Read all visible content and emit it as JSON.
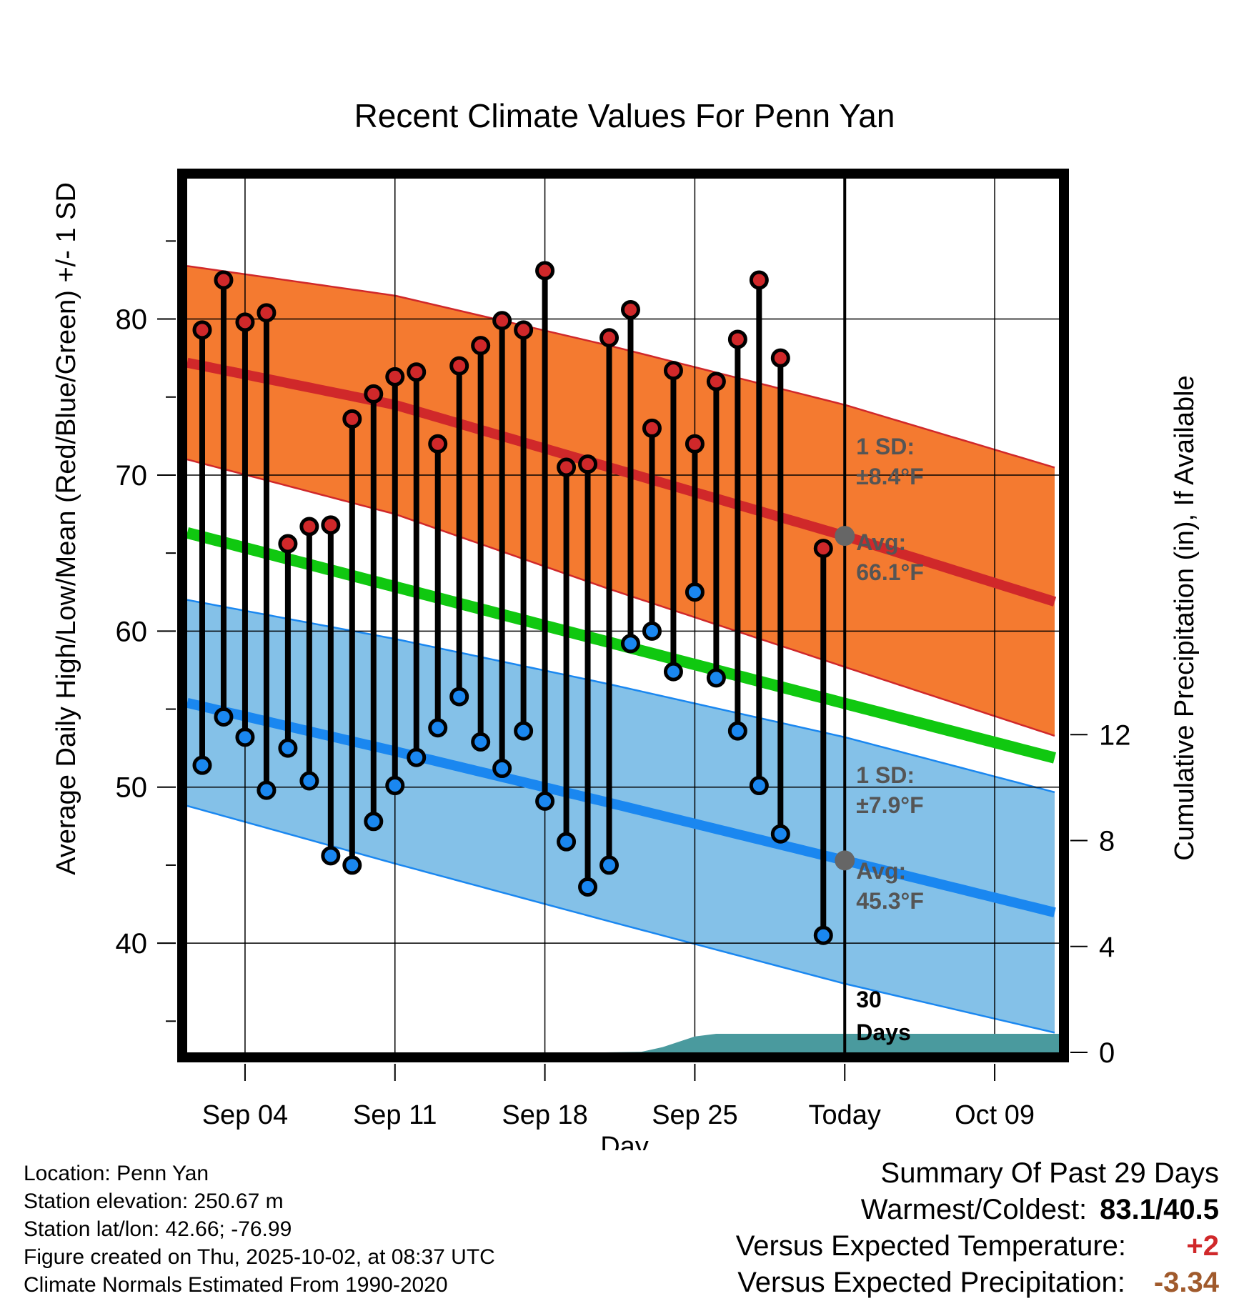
{
  "chart_data": {
    "type": "line",
    "title": "Recent Climate Values For Penn Yan",
    "xlabel": "Day",
    "ylabel": "Average Daily High/Low/Mean (Red/Blue/Green) +/- 1 SD",
    "y2label": "Cumulative Precipitation (in), If Available",
    "x_tick_labels": [
      "Sep 04",
      "Sep 11",
      "Sep 18",
      "Sep 25",
      "Today",
      "Oct 09"
    ],
    "x_tick_days": [
      3,
      10,
      17,
      24,
      31,
      38
    ],
    "x_range_days": [
      0.3,
      41
    ],
    "today_day": 31,
    "ylim": [
      33,
      89
    ],
    "y_ticks": [
      40,
      50,
      60,
      70,
      80
    ],
    "y2lim": [
      0,
      33
    ],
    "y2_ticks": [
      0,
      4,
      8,
      12
    ],
    "daily": {
      "days": [
        1,
        2,
        3,
        4,
        5,
        6,
        7,
        8,
        9,
        10,
        11,
        12,
        13,
        14,
        15,
        16,
        17,
        18,
        19,
        20,
        21,
        22,
        23,
        24,
        25,
        26,
        27,
        28,
        29,
        30
      ],
      "highs": [
        79.3,
        82.5,
        79.8,
        80.4,
        65.6,
        66.7,
        66.8,
        73.6,
        75.2,
        76.3,
        76.6,
        72.0,
        77.0,
        78.3,
        79.9,
        79.3,
        83.1,
        70.5,
        70.7,
        78.8,
        80.6,
        73.0,
        76.7,
        72.0,
        76.0,
        78.7,
        82.5,
        77.5,
        null,
        65.3
      ],
      "lows": [
        51.4,
        54.5,
        53.2,
        49.8,
        52.5,
        50.4,
        45.6,
        45.0,
        47.8,
        50.1,
        51.9,
        53.8,
        55.8,
        52.9,
        51.2,
        53.6,
        49.1,
        46.5,
        43.6,
        45.0,
        59.2,
        60.0,
        57.4,
        62.5,
        57.0,
        53.6,
        50.1,
        47.0,
        null,
        40.5
      ]
    },
    "normal_high": {
      "days": [
        0.3,
        10,
        20,
        31,
        41
      ],
      "mean": [
        77.2,
        74.5,
        70.5,
        66.1,
        61.8
      ],
      "sd": [
        6.2,
        7.0,
        7.8,
        8.4,
        8.6
      ]
    },
    "normal_low": {
      "days": [
        0.3,
        10,
        20,
        31,
        41
      ],
      "mean": [
        55.4,
        52.3,
        49.0,
        45.3,
        41.9
      ],
      "sd": [
        6.6,
        7.2,
        7.6,
        7.9,
        7.7
      ]
    },
    "normal_mean": {
      "days": [
        0.3,
        41
      ],
      "values": [
        66.3,
        51.8
      ]
    },
    "precip": {
      "days": [
        0.3,
        19.8,
        21.5,
        22.5,
        24,
        25,
        30,
        41
      ],
      "values": [
        0,
        0,
        0.02,
        0.2,
        0.6,
        0.7,
        0.7,
        0.7
      ]
    },
    "annotations": {
      "high_sd_label": "1 SD:",
      "high_sd_value": "±8.4°F",
      "high_avg_label": "Avg:",
      "high_avg_value": "66.1°F",
      "low_sd_label": "1 SD:",
      "low_sd_value": "±7.9°F",
      "low_avg_label": "Avg:",
      "low_avg_value": "45.3°F",
      "days_count": "30",
      "days_word": "Days"
    }
  },
  "colors": {
    "high_band": "#f47a30",
    "high_line": "#d0282a",
    "low_band": "#84c1e8",
    "low_line": "#1a87f0",
    "mean_line": "#10c810",
    "precip_fill": "#4a9a9e",
    "annot": "#555555",
    "warm_value": "#d0282a",
    "precip_value": "#a05a2c"
  },
  "info": {
    "location": "Location: Penn Yan",
    "elevation": "Station elevation: 250.67 m",
    "latlon": "Station lat/lon: 42.66; -76.99",
    "created": "Figure created on Thu, 2025-10-02, at 08:37 UTC",
    "normals": "Climate Normals Estimated From 1990-2020"
  },
  "summary": {
    "title": "Summary Of Past 29 Days",
    "warm_cold_label": "Warmest/Coldest:",
    "warm_cold_value": "83.1/40.5",
    "temp_label": "Versus Expected Temperature:",
    "temp_value": "+2",
    "precip_label": "Versus Expected Precipitation:",
    "precip_value": "-3.34"
  }
}
